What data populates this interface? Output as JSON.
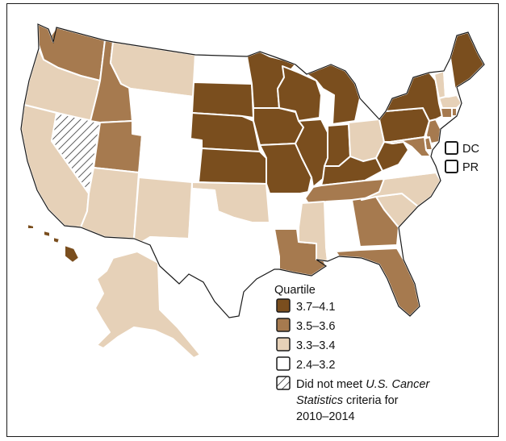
{
  "colors": {
    "q1": "#7a4e1e",
    "q2": "#a67a4f",
    "q3": "#e6d1b8",
    "q4": "#ffffff",
    "border": "#1a1a1a"
  },
  "territories": [
    {
      "id": "dc",
      "label": "DC",
      "quartile": "q4"
    },
    {
      "id": "pr",
      "label": "PR",
      "quartile": "q4"
    }
  ],
  "legend": {
    "title": "Quartile",
    "items": [
      {
        "quartile": "q1",
        "label": "3.7–4.1"
      },
      {
        "quartile": "q2",
        "label": "3.5–3.6"
      },
      {
        "quartile": "q3",
        "label": "3.3–3.4"
      },
      {
        "quartile": "q4",
        "label": "2.4–3.2"
      },
      {
        "quartile": "na",
        "label_line1_pre": "Did not meet ",
        "label_line1_em": "U.S. Cancer",
        "label_line2_em": "Statistics",
        "label_line2_post": " criteria for",
        "label_line3": "2010–2014"
      }
    ]
  },
  "states": [
    {
      "abbr": "WA",
      "quartile": "q2"
    },
    {
      "abbr": "OR",
      "quartile": "q3"
    },
    {
      "abbr": "CA",
      "quartile": "q3"
    },
    {
      "abbr": "NV",
      "quartile": "na"
    },
    {
      "abbr": "ID",
      "quartile": "q2"
    },
    {
      "abbr": "MT",
      "quartile": "q3"
    },
    {
      "abbr": "WY",
      "quartile": "q4"
    },
    {
      "abbr": "UT",
      "quartile": "q2"
    },
    {
      "abbr": "AZ",
      "quartile": "q3"
    },
    {
      "abbr": "CO",
      "quartile": "q4"
    },
    {
      "abbr": "NM",
      "quartile": "q3"
    },
    {
      "abbr": "ND",
      "quartile": "q4"
    },
    {
      "abbr": "SD",
      "quartile": "q1"
    },
    {
      "abbr": "NE",
      "quartile": "q1"
    },
    {
      "abbr": "KS",
      "quartile": "q1"
    },
    {
      "abbr": "OK",
      "quartile": "q3"
    },
    {
      "abbr": "TX",
      "quartile": "q4"
    },
    {
      "abbr": "MN",
      "quartile": "q1"
    },
    {
      "abbr": "IA",
      "quartile": "q1"
    },
    {
      "abbr": "MO",
      "quartile": "q1"
    },
    {
      "abbr": "AR",
      "quartile": "q4"
    },
    {
      "abbr": "LA",
      "quartile": "q2"
    },
    {
      "abbr": "WI",
      "quartile": "q1"
    },
    {
      "abbr": "IL",
      "quartile": "q1"
    },
    {
      "abbr": "MI",
      "quartile": "q1"
    },
    {
      "abbr": "IN",
      "quartile": "q1"
    },
    {
      "abbr": "OH",
      "quartile": "q3"
    },
    {
      "abbr": "KY",
      "quartile": "q1"
    },
    {
      "abbr": "TN",
      "quartile": "q2"
    },
    {
      "abbr": "MS",
      "quartile": "q3"
    },
    {
      "abbr": "AL",
      "quartile": "q4"
    },
    {
      "abbr": "GA",
      "quartile": "q2"
    },
    {
      "abbr": "FL",
      "quartile": "q2"
    },
    {
      "abbr": "SC",
      "quartile": "q3"
    },
    {
      "abbr": "NC",
      "quartile": "q3"
    },
    {
      "abbr": "VA",
      "quartile": "q4"
    },
    {
      "abbr": "WV",
      "quartile": "q1"
    },
    {
      "abbr": "PA",
      "quartile": "q1"
    },
    {
      "abbr": "NY",
      "quartile": "q1"
    },
    {
      "abbr": "VT",
      "quartile": "q3"
    },
    {
      "abbr": "NH",
      "quartile": "q4"
    },
    {
      "abbr": "ME",
      "quartile": "q1"
    },
    {
      "abbr": "MA",
      "quartile": "q3"
    },
    {
      "abbr": "CT",
      "quartile": "q2"
    },
    {
      "abbr": "RI",
      "quartile": "q2"
    },
    {
      "abbr": "NJ",
      "quartile": "q2"
    },
    {
      "abbr": "DE",
      "quartile": "q2"
    },
    {
      "abbr": "MD",
      "quartile": "q2"
    },
    {
      "abbr": "AK",
      "quartile": "q3"
    },
    {
      "abbr": "HI",
      "quartile": "q1"
    }
  ]
}
